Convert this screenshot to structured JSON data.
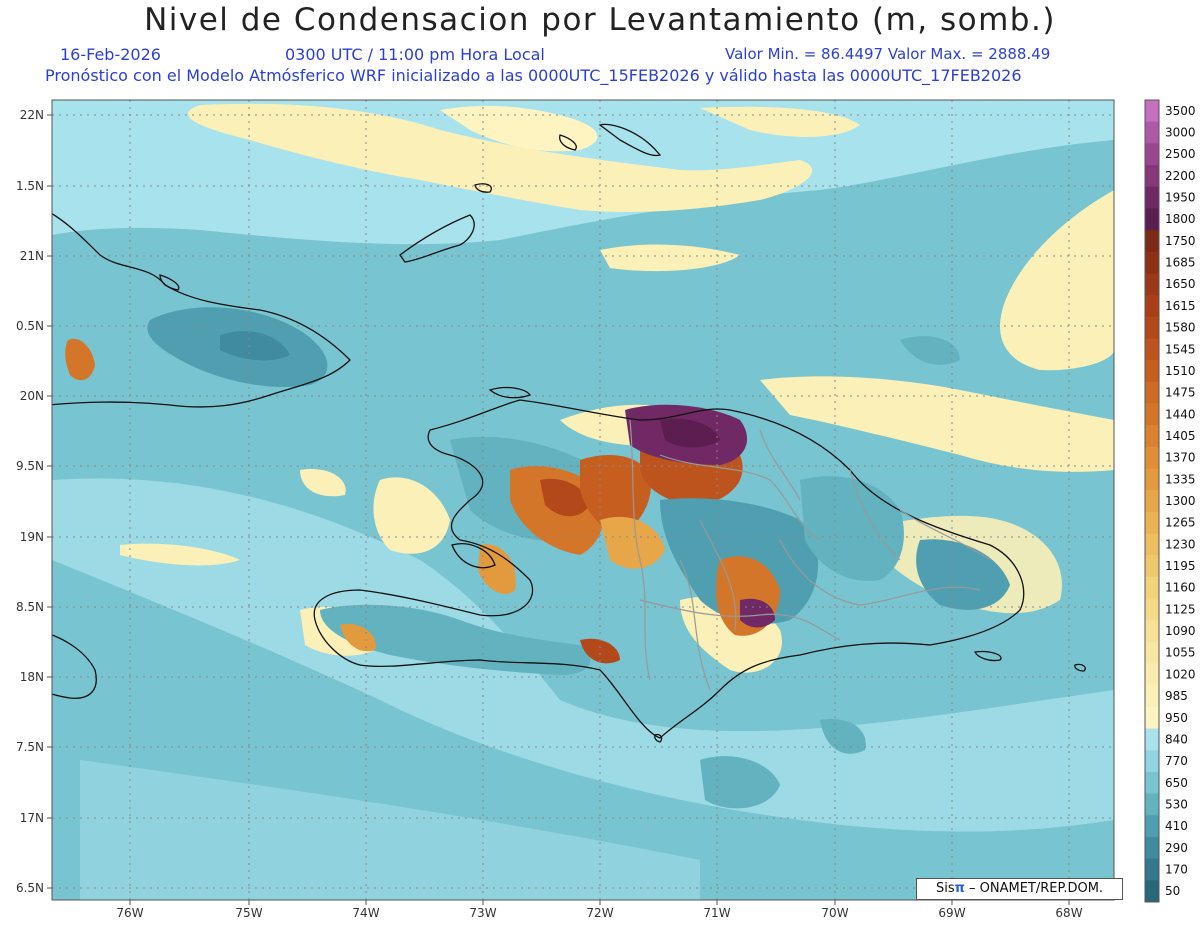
{
  "title": "Nivel de Condensacion por Levantamiento (m, somb.)",
  "subtitle": {
    "date": "16-Feb-2026",
    "time": "0300 UTC / 11:00 pm Hora Local",
    "minmax": "Valor Min. = 86.4497   Valor Max. = 2888.49",
    "forecast": "Pronóstico con el Modelo Atmósferico WRF inicializado a las 0000UTC_15FEB2026 y válido hasta las  0000UTC_17FEB2026"
  },
  "lon_labels": [
    "76W",
    "75W",
    "74W",
    "73W",
    "72W",
    "71W",
    "70W",
    "69W",
    "68W"
  ],
  "lat_labels": [
    "22N",
    "1.5N",
    "21N",
    "0.5N",
    "20N",
    "9.5N",
    "19N",
    "8.5N",
    "18N",
    "7.5N",
    "17N",
    "6.5N"
  ],
  "colorbar": {
    "levels": [
      "3500",
      "3000",
      "2500",
      "2200",
      "1950",
      "1800",
      "1750",
      "1685",
      "1650",
      "1615",
      "1580",
      "1545",
      "1510",
      "1475",
      "1440",
      "1405",
      "1370",
      "1335",
      "1300",
      "1265",
      "1230",
      "1195",
      "1160",
      "1125",
      "1090",
      "1055",
      "1020",
      "985",
      "950",
      "840",
      "770",
      "650",
      "530",
      "410",
      "290",
      "170",
      "50"
    ],
    "colors": [
      "#c46fbf",
      "#b058a8",
      "#9b4690",
      "#873779",
      "#702964",
      "#5c1d50",
      "#7e2816",
      "#8c3016",
      "#9a3817",
      "#a74019",
      "#b3491b",
      "#bd531d",
      "#c65e20",
      "#cd6a25",
      "#d4762a",
      "#da822f",
      "#df8e36",
      "#e39a3e",
      "#e7a648",
      "#ebb253",
      "#eebd5f",
      "#f0c86c",
      "#f2d27a",
      "#f4da88",
      "#f6e196",
      "#f8e7a2",
      "#faecae",
      "#fbf0b8",
      "#fdf4c2",
      "#a8e2ec",
      "#8fd4de",
      "#78c4d0",
      "#63b2c0",
      "#509fb0",
      "#408b9e",
      "#33788c",
      "#28677a"
    ]
  },
  "credit": {
    "brand": "Sis",
    "pi": "π",
    "text": " – ONAMET/REP.DOM."
  }
}
